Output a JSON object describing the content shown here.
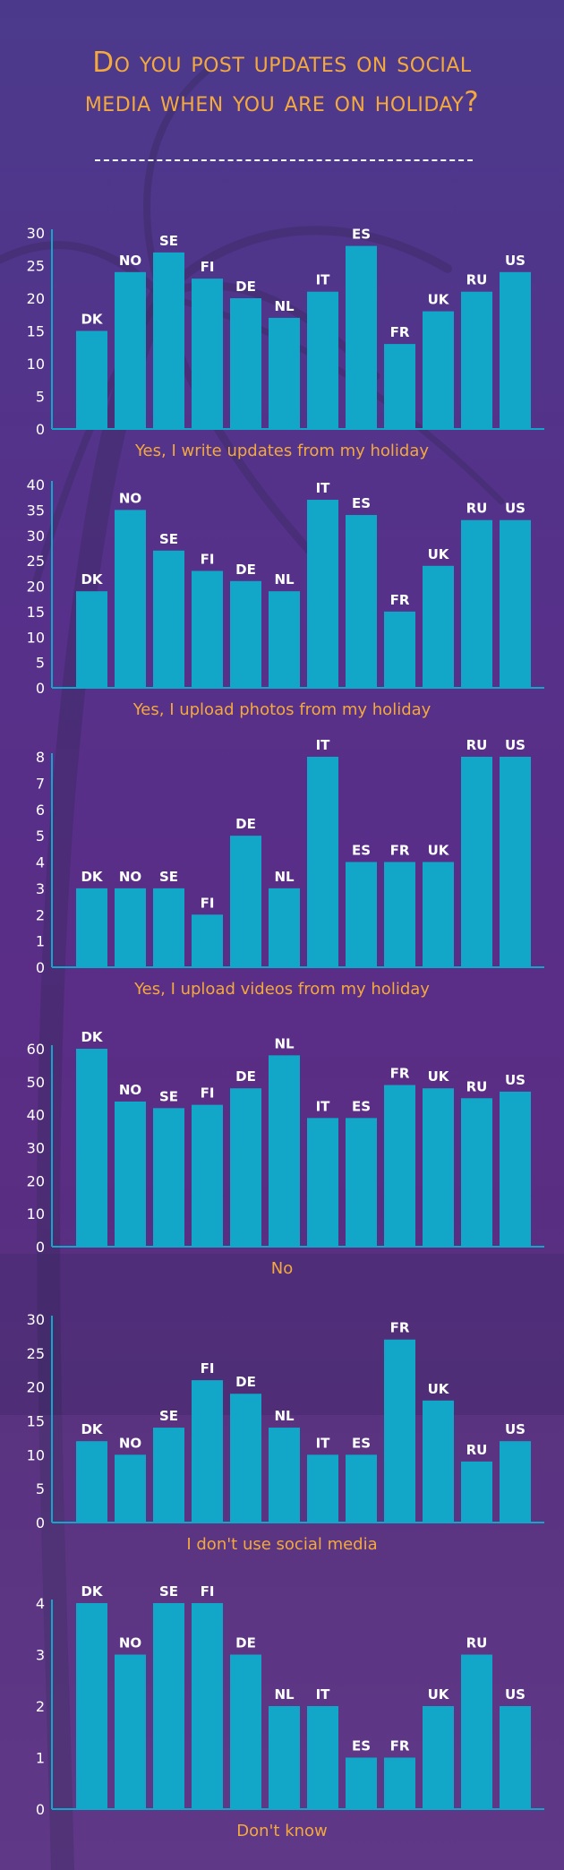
{
  "title": {
    "line1": "Do you post updates on social",
    "line2": "media when you are on holiday?"
  },
  "colors": {
    "bar": "#12a6c8",
    "title": "#f3a93d",
    "caption": "#f3a93d",
    "text": "#ffffff"
  },
  "chart_data": [
    {
      "type": "bar",
      "title": "Yes, I write updates from my holiday",
      "categories": [
        "DK",
        "NO",
        "SE",
        "FI",
        "DE",
        "NL",
        "IT",
        "ES",
        "FR",
        "UK",
        "RU",
        "US"
      ],
      "values": [
        15,
        24,
        27,
        23,
        20,
        17,
        21,
        28,
        13,
        18,
        21,
        24
      ],
      "ylim": [
        0,
        30
      ],
      "yticks": [
        0,
        5,
        10,
        15,
        20,
        25,
        30
      ],
      "grid": false
    },
    {
      "type": "bar",
      "title": "Yes, I upload photos from my holiday",
      "categories": [
        "DK",
        "NO",
        "SE",
        "FI",
        "DE",
        "NL",
        "IT",
        "ES",
        "FR",
        "UK",
        "RU",
        "US"
      ],
      "values": [
        19,
        35,
        27,
        23,
        21,
        19,
        37,
        34,
        15,
        24,
        33,
        33
      ],
      "ylim": [
        0,
        40
      ],
      "yticks": [
        0,
        5,
        10,
        15,
        20,
        25,
        30,
        35,
        40
      ],
      "grid": false
    },
    {
      "type": "bar",
      "title": "Yes, I upload videos from my holiday",
      "categories": [
        "DK",
        "NO",
        "SE",
        "FI",
        "DE",
        "NL",
        "IT",
        "ES",
        "FR",
        "UK",
        "RU",
        "US"
      ],
      "values": [
        3,
        3,
        3,
        2,
        5,
        3,
        8,
        4,
        4,
        4,
        8,
        8
      ],
      "ylim": [
        0,
        8
      ],
      "yticks": [
        0,
        1,
        2,
        3,
        4,
        5,
        6,
        7,
        8
      ],
      "grid": false
    },
    {
      "type": "bar",
      "title": "No",
      "categories": [
        "DK",
        "NO",
        "SE",
        "FI",
        "DE",
        "NL",
        "IT",
        "ES",
        "FR",
        "UK",
        "RU",
        "US"
      ],
      "values": [
        60,
        44,
        42,
        43,
        48,
        58,
        39,
        39,
        49,
        48,
        45,
        47
      ],
      "ylim": [
        0,
        60
      ],
      "yticks": [
        0,
        10,
        20,
        30,
        40,
        50,
        60
      ],
      "grid": false
    },
    {
      "type": "bar",
      "title": "I don't use social media",
      "categories": [
        "DK",
        "NO",
        "SE",
        "FI",
        "DE",
        "NL",
        "IT",
        "ES",
        "FR",
        "UK",
        "RU",
        "US"
      ],
      "values": [
        12,
        10,
        14,
        21,
        19,
        14,
        10,
        10,
        27,
        18,
        9,
        12
      ],
      "ylim": [
        0,
        30
      ],
      "yticks": [
        0,
        5,
        10,
        15,
        20,
        25,
        30
      ],
      "grid": false
    },
    {
      "type": "bar",
      "title": "Don't know",
      "categories": [
        "DK",
        "NO",
        "SE",
        "FI",
        "DE",
        "NL",
        "IT",
        "ES",
        "FR",
        "UK",
        "RU",
        "US"
      ],
      "values": [
        4,
        3,
        4,
        4,
        3,
        2,
        2,
        1,
        1,
        2,
        3,
        2
      ],
      "ylim": [
        0,
        4
      ],
      "yticks": [
        0,
        1,
        2,
        3,
        4
      ],
      "grid": false
    }
  ]
}
